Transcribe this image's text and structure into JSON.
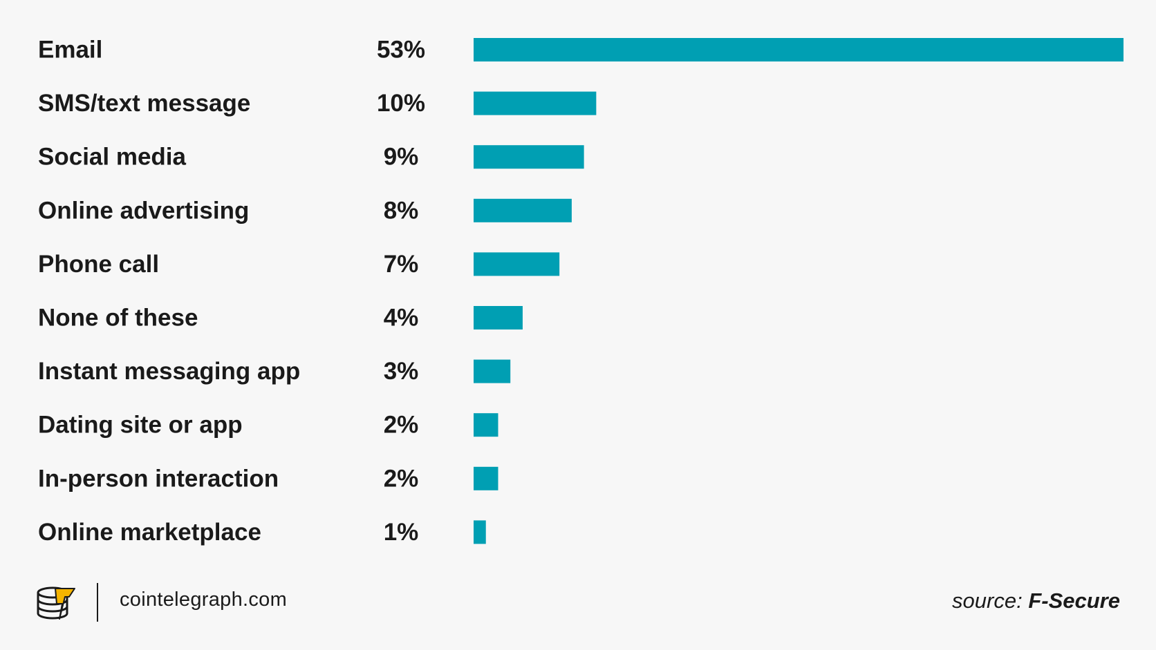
{
  "chart_data": {
    "type": "bar",
    "orientation": "horizontal",
    "categories": [
      "Email",
      "SMS/text message",
      "Social media",
      "Online advertising",
      "Phone call",
      "None of these",
      "Instant messaging app",
      "Dating site or app",
      "In-person interaction",
      "Online marketplace"
    ],
    "values": [
      53,
      10,
      9,
      8,
      7,
      4,
      3,
      2,
      2,
      1
    ],
    "value_labels": [
      "53%",
      "10%",
      "9%",
      "8%",
      "7%",
      "4%",
      "3%",
      "2%",
      "2%",
      "1%"
    ],
    "xlim": [
      0,
      53
    ],
    "grid": false,
    "legend": "none",
    "bar_color": "#009fb3"
  },
  "footer": {
    "site": "cointelegraph.com",
    "source_prefix": "source: ",
    "source_name": "F-Secure",
    "logo_icon": "cointelegraph-logo-icon"
  },
  "colors": {
    "background": "#f7f7f7",
    "text": "#1a1a1a",
    "bar": "#009fb3",
    "logo_accent": "#f5b400"
  }
}
